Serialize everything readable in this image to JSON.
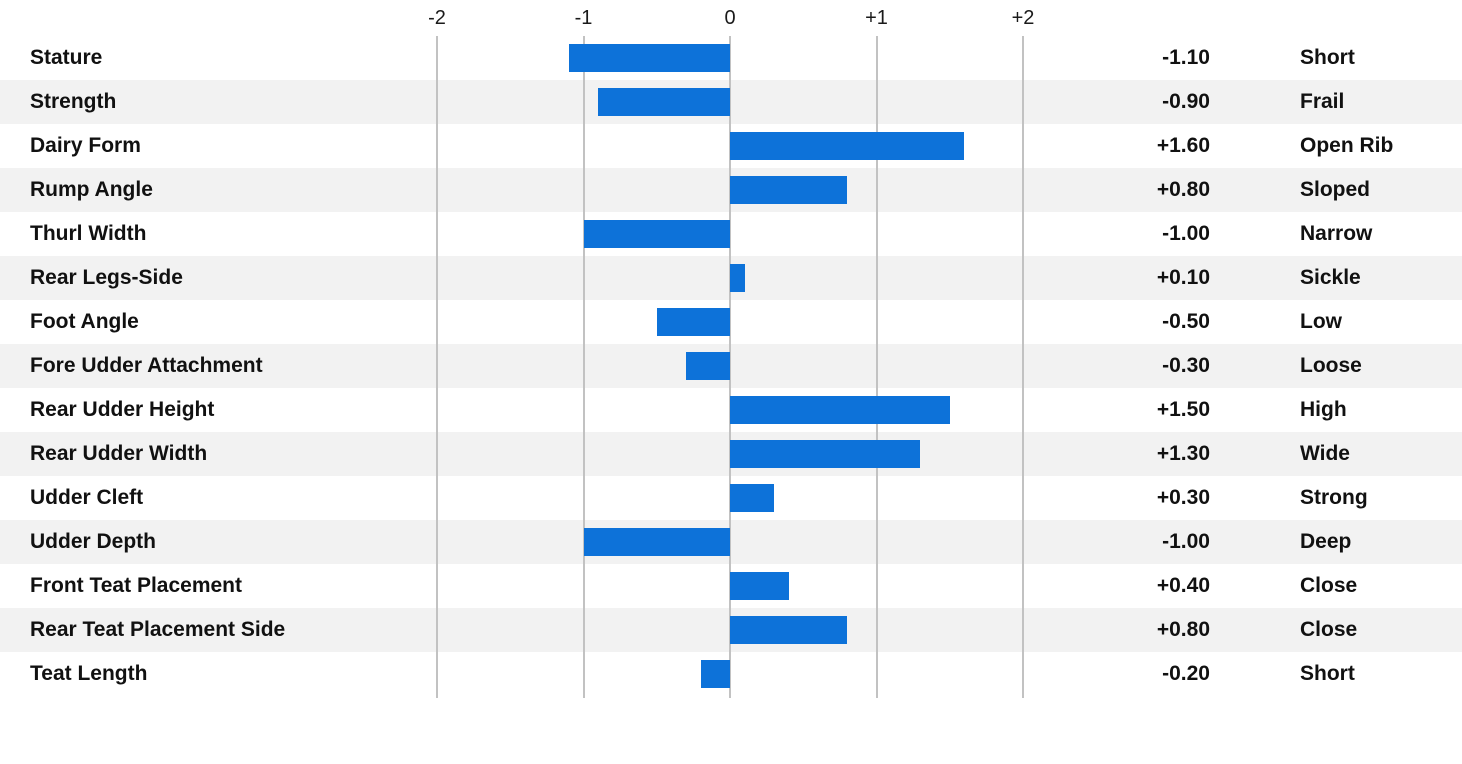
{
  "chart_data": {
    "type": "bar",
    "orientation": "horizontal",
    "title": "",
    "xlabel": "",
    "ylabel": "",
    "xlim": [
      -2,
      2
    ],
    "grid": true,
    "bar_color": "#0d72d9",
    "stripe_color": "#f2f2f2",
    "grid_color": "#c2c2c2",
    "x_ticks": [
      -2,
      -1,
      0,
      1,
      2
    ],
    "x_tick_labels": [
      "-2",
      "-1",
      "0",
      "+1",
      "+2"
    ],
    "rows": [
      {
        "label": "Stature",
        "value": -1.1,
        "value_text": "-1.10",
        "descriptor": "Short"
      },
      {
        "label": "Strength",
        "value": -0.9,
        "value_text": "-0.90",
        "descriptor": "Frail"
      },
      {
        "label": "Dairy Form",
        "value": 1.6,
        "value_text": "+1.60",
        "descriptor": "Open Rib"
      },
      {
        "label": "Rump Angle",
        "value": 0.8,
        "value_text": "+0.80",
        "descriptor": "Sloped"
      },
      {
        "label": "Thurl Width",
        "value": -1.0,
        "value_text": "-1.00",
        "descriptor": "Narrow"
      },
      {
        "label": "Rear Legs-Side",
        "value": 0.1,
        "value_text": "+0.10",
        "descriptor": "Sickle"
      },
      {
        "label": "Foot Angle",
        "value": -0.5,
        "value_text": "-0.50",
        "descriptor": "Low"
      },
      {
        "label": "Fore Udder Attachment",
        "value": -0.3,
        "value_text": "-0.30",
        "descriptor": "Loose"
      },
      {
        "label": "Rear Udder Height",
        "value": 1.5,
        "value_text": "+1.50",
        "descriptor": "High"
      },
      {
        "label": "Rear Udder Width",
        "value": 1.3,
        "value_text": "+1.30",
        "descriptor": "Wide"
      },
      {
        "label": "Udder Cleft",
        "value": 0.3,
        "value_text": "+0.30",
        "descriptor": "Strong"
      },
      {
        "label": "Udder Depth",
        "value": -1.0,
        "value_text": "-1.00",
        "descriptor": "Deep"
      },
      {
        "label": "Front Teat Placement",
        "value": 0.4,
        "value_text": "+0.40",
        "descriptor": "Close"
      },
      {
        "label": "Rear Teat Placement Side",
        "value": 0.8,
        "value_text": "+0.80",
        "descriptor": "Close"
      },
      {
        "label": "Teat Length",
        "value": -0.2,
        "value_text": "-0.20",
        "descriptor": "Short"
      }
    ]
  }
}
